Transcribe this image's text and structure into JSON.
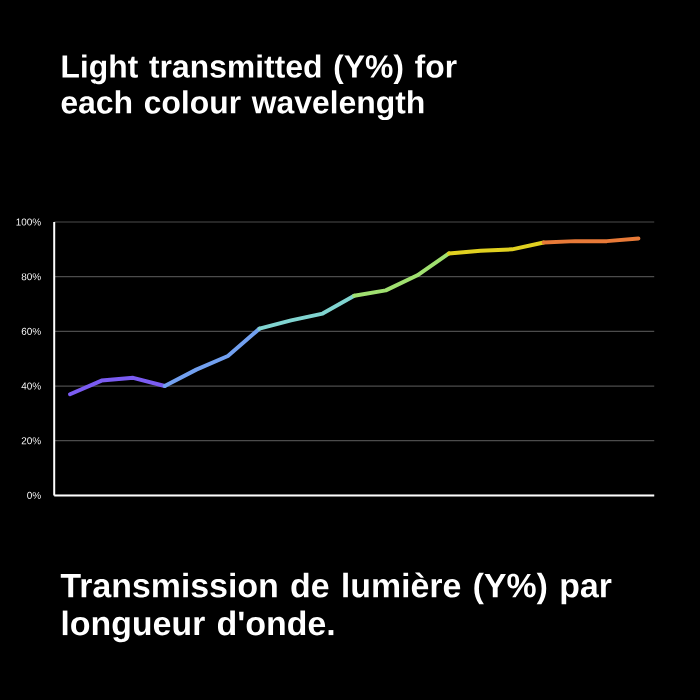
{
  "chart_data": {
    "type": "line",
    "title": "Light transmitted (Y%) for each colour wavelength",
    "annotations": [
      "Transmission de lumière (Y%) par longueur d'onde."
    ],
    "categories": [
      null,
      null,
      null,
      null,
      null,
      null,
      null,
      null,
      null,
      null,
      null,
      null,
      null,
      null,
      null,
      null,
      null,
      null,
      null
    ],
    "series": [
      {
        "color": "#7b5cf2",
        "values": [
          37,
          42,
          43,
          40,
          null,
          null,
          null,
          null,
          null,
          null,
          null,
          null,
          null,
          null,
          null,
          null,
          null,
          null,
          null
        ]
      },
      {
        "color": "#72a0f0",
        "values": [
          null,
          null,
          null,
          40,
          46,
          51,
          61,
          null,
          null,
          null,
          null,
          null,
          null,
          null,
          null,
          null,
          null,
          null,
          null
        ]
      },
      {
        "color": "#80d4d0",
        "values": [
          null,
          null,
          null,
          null,
          null,
          null,
          61,
          64,
          66.5,
          73,
          null,
          null,
          null,
          null,
          null,
          null,
          null,
          null,
          null
        ]
      },
      {
        "color": "#a0e070",
        "values": [
          null,
          null,
          null,
          null,
          null,
          null,
          null,
          null,
          null,
          73,
          75,
          80.5,
          88.5,
          null,
          null,
          null,
          null,
          null,
          null
        ]
      },
      {
        "color": "#e0d020",
        "values": [
          null,
          null,
          null,
          null,
          null,
          null,
          null,
          null,
          null,
          null,
          null,
          null,
          88.5,
          89.5,
          90,
          92.5,
          null,
          null,
          null
        ]
      },
      {
        "color": "#e87a38",
        "values": [
          null,
          null,
          null,
          null,
          null,
          null,
          null,
          null,
          null,
          null,
          null,
          null,
          null,
          null,
          null,
          92.5,
          93,
          93,
          94
        ]
      }
    ],
    "ylim": [
      0,
      100
    ],
    "yticks": [
      {
        "value": 0,
        "label": "0%"
      },
      {
        "value": 20,
        "label": "20%"
      },
      {
        "value": 40,
        "label": "40%"
      },
      {
        "value": 60,
        "label": "60%"
      },
      {
        "value": 80,
        "label": "80%"
      },
      {
        "value": 100,
        "label": "100%"
      }
    ],
    "grid": "y",
    "marker": "none",
    "line_style": "solid"
  }
}
